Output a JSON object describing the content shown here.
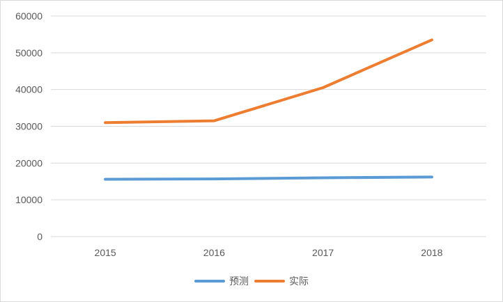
{
  "chart_data": {
    "type": "line",
    "categories": [
      "2015",
      "2016",
      "2017",
      "2018"
    ],
    "y_ticks": [
      "0",
      "10000",
      "20000",
      "30000",
      "40000",
      "50000",
      "60000"
    ],
    "ylim": [
      0,
      60000
    ],
    "grid": true,
    "legend_position": "bottom",
    "series": [
      {
        "name": "预测",
        "color": "#5b9bd5",
        "values": [
          15600,
          15700,
          16000,
          16200
        ]
      },
      {
        "name": "实际",
        "color": "#ed7d31",
        "values": [
          31000,
          31500,
          40500,
          53500
        ]
      }
    ]
  }
}
